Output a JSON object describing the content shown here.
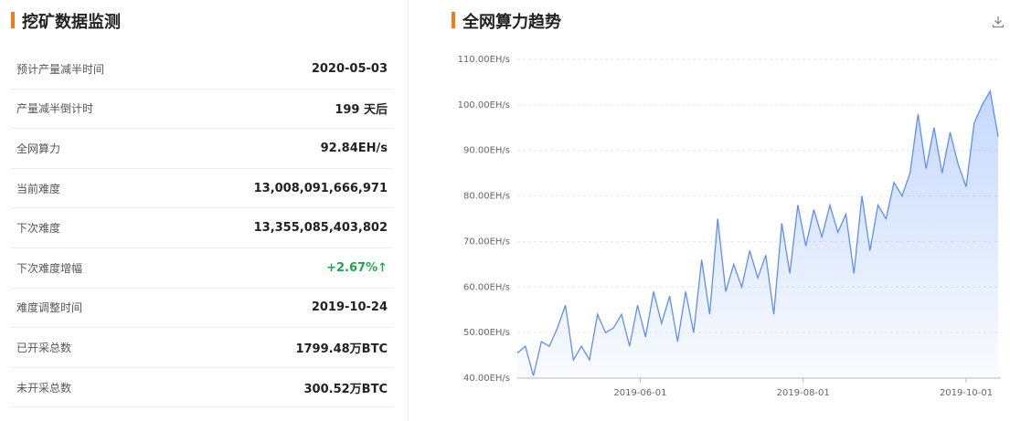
{
  "left_panel": {
    "title": "挖矿数据监测",
    "rows": [
      [
        "预计产量减半时间",
        "2020-05-03"
      ],
      [
        "产量减半倒计时",
        "199 天后"
      ],
      [
        "全网算力",
        "92.84EH/s"
      ],
      [
        "当前难度",
        "13,008,091,666,971"
      ],
      [
        "下次难度",
        "13,355,085,403,802"
      ],
      [
        "下次难度增幅",
        "+2.67%↑"
      ],
      [
        "难度调整时间",
        "2019-10-24"
      ],
      [
        "已开采总数",
        "1799.48万BTC"
      ],
      [
        "未开采总数",
        "300.52万BTC"
      ]
    ]
  },
  "chart_data": {
    "type": "area",
    "title": "全网算力趋势",
    "x": [
      "2019-04-16",
      "2019-04-19",
      "2019-04-22",
      "2019-04-25",
      "2019-04-28",
      "2019-05-01",
      "2019-05-04",
      "2019-05-07",
      "2019-05-10",
      "2019-05-13",
      "2019-05-16",
      "2019-05-19",
      "2019-05-22",
      "2019-05-25",
      "2019-05-28",
      "2019-05-31",
      "2019-06-03",
      "2019-06-06",
      "2019-06-09",
      "2019-06-12",
      "2019-06-15",
      "2019-06-18",
      "2019-06-21",
      "2019-06-24",
      "2019-06-27",
      "2019-06-30",
      "2019-07-03",
      "2019-07-06",
      "2019-07-09",
      "2019-07-12",
      "2019-07-15",
      "2019-07-18",
      "2019-07-21",
      "2019-07-24",
      "2019-07-27",
      "2019-07-30",
      "2019-08-02",
      "2019-08-05",
      "2019-08-08",
      "2019-08-11",
      "2019-08-14",
      "2019-08-17",
      "2019-08-20",
      "2019-08-23",
      "2019-08-26",
      "2019-08-29",
      "2019-09-01",
      "2019-09-04",
      "2019-09-07",
      "2019-09-10",
      "2019-09-13",
      "2019-09-16",
      "2019-09-19",
      "2019-09-22",
      "2019-09-25",
      "2019-09-28",
      "2019-10-01",
      "2019-10-04",
      "2019-10-07",
      "2019-10-10",
      "2019-10-13"
    ],
    "series": [
      {
        "color": "#5b8ff9",
        "values": [
          45.5,
          47,
          40.5,
          48,
          47,
          51,
          56,
          44,
          47,
          44,
          54,
          50,
          51,
          54,
          47,
          56,
          49,
          59,
          52,
          58,
          48,
          59,
          50,
          66,
          54,
          75,
          59,
          65,
          60,
          68,
          62,
          67,
          54,
          74,
          63,
          78,
          69,
          77,
          71,
          78,
          72,
          76,
          63,
          80,
          68,
          78,
          75,
          83,
          80,
          85,
          98,
          86,
          95,
          85,
          94,
          87,
          82,
          96,
          100,
          103,
          93
        ]
      }
    ],
    "xlim": [
      "2019-04-16",
      "2019-10-14"
    ],
    "xticks": [
      "2019-06-01",
      "2019-08-01",
      "2019-10-01"
    ],
    "ylim": [
      40,
      110
    ],
    "yticks": [
      {
        "value": 40,
        "label": "40.00EH/s"
      },
      {
        "value": 50,
        "label": "50.00EH/s"
      },
      {
        "value": 60,
        "label": "60.00EH/s"
      },
      {
        "value": 70,
        "label": "70.00EH/s"
      },
      {
        "value": 80,
        "label": "80.00EH/s"
      },
      {
        "value": 90,
        "label": "90.00EH/s"
      },
      {
        "value": 100,
        "label": "100.00EH/s"
      },
      {
        "value": 110,
        "label": "110.00EH/s"
      }
    ],
    "grid": true
  }
}
